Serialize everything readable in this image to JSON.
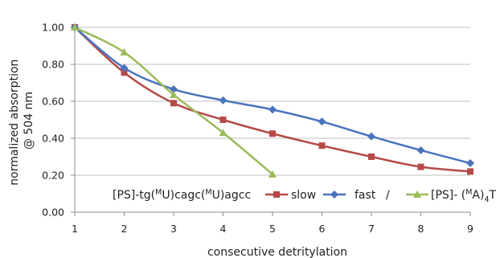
{
  "chart_data": {
    "type": "line",
    "title": "",
    "xlabel": "consecutive detritylation",
    "ylabel": "normalized absorption @ 504 nm",
    "ylabel_lines": [
      "normalized absorption",
      "@ 504 nm"
    ],
    "xlim": [
      1,
      9
    ],
    "ylim": [
      0,
      1
    ],
    "x_ticks": [
      1,
      2,
      3,
      4,
      5,
      6,
      7,
      8,
      9
    ],
    "y_ticks": [
      0,
      0.2,
      0.4,
      0.6,
      0.8,
      1.0
    ],
    "y_tick_labels": [
      "0.00",
      "0.20",
      "0.40",
      "0.60",
      "0.80",
      "1.00"
    ],
    "grid": "horizontal",
    "legend_position": "bottom-right (inside plot)",
    "legend_prefix": {
      "base": "[PS]-tg(",
      "sup1": "M",
      "mid": "U)cagc(",
      "sup2": "M",
      "end": "U)agcc"
    },
    "separator": "/",
    "series": [
      {
        "name": "slow",
        "color": "#B54A48",
        "marker": "square",
        "x": [
          1,
          2,
          3,
          4,
          5,
          6,
          7,
          8,
          9
        ],
        "y": [
          1.0,
          0.755,
          0.59,
          0.5,
          0.425,
          0.36,
          0.3,
          0.245,
          0.22
        ]
      },
      {
        "name": "fast",
        "color": "#4A73BE",
        "marker": "diamond",
        "x": [
          1,
          2,
          3,
          4,
          5,
          6,
          7,
          8,
          9
        ],
        "y": [
          1.0,
          0.78,
          0.665,
          0.605,
          0.555,
          0.49,
          0.41,
          0.335,
          0.265
        ]
      },
      {
        "name": "[PS]- (MA)4T",
        "label_parts": {
          "base": "[PS]- (",
          "sup": "M",
          "mid": "A)",
          "sub": "4",
          "end": "T"
        },
        "color": "#9BBB59",
        "marker": "triangle",
        "x": [
          1,
          2,
          3,
          4,
          5
        ],
        "y": [
          1.0,
          0.865,
          0.635,
          0.43,
          0.205
        ]
      }
    ]
  }
}
